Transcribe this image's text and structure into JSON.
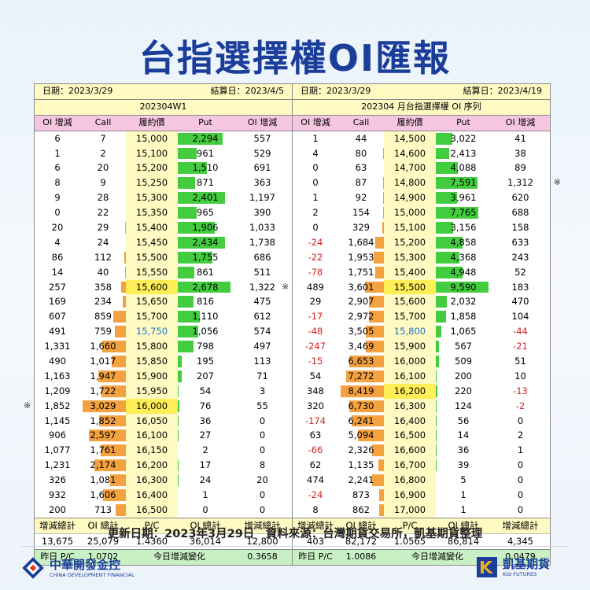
{
  "title": "台指選擇權OI匯報",
  "headers": [
    "OI 增減",
    "Call",
    "履約價",
    "Put",
    "OI 增減"
  ],
  "left": {
    "date_label": "日期：2023/3/29",
    "settle_label": "結算日：2023/4/5",
    "series": "202304W1",
    "atm_strike": "15,750",
    "rows": [
      {
        "coi": "6",
        "call": "7",
        "strike": "15,000",
        "put": "2,294",
        "poi": "557",
        "cv": 7,
        "pv": 2294,
        "mark": ""
      },
      {
        "coi": "1",
        "call": "2",
        "strike": "15,100",
        "put": "961",
        "poi": "529",
        "cv": 2,
        "pv": 961,
        "mark": ""
      },
      {
        "coi": "6",
        "call": "20",
        "strike": "15,200",
        "put": "1,510",
        "poi": "691",
        "cv": 20,
        "pv": 1510,
        "mark": ""
      },
      {
        "coi": "8",
        "call": "9",
        "strike": "15,250",
        "put": "871",
        "poi": "363",
        "cv": 9,
        "pv": 871,
        "mark": ""
      },
      {
        "coi": "9",
        "call": "28",
        "strike": "15,300",
        "put": "2,401",
        "poi": "1,197",
        "cv": 28,
        "pv": 2401,
        "mark": ""
      },
      {
        "coi": "0",
        "call": "22",
        "strike": "15,350",
        "put": "965",
        "poi": "390",
        "cv": 22,
        "pv": 965,
        "mark": ""
      },
      {
        "coi": "20",
        "call": "29",
        "strike": "15,400",
        "put": "1,906",
        "poi": "1,033",
        "cv": 29,
        "pv": 1906,
        "mark": ""
      },
      {
        "coi": "4",
        "call": "24",
        "strike": "15,450",
        "put": "2,434",
        "poi": "1,738",
        "cv": 24,
        "pv": 2434,
        "mark": "right"
      },
      {
        "coi": "86",
        "call": "112",
        "strike": "15,500",
        "put": "1,755",
        "poi": "686",
        "cv": 112,
        "pv": 1755,
        "mark": ""
      },
      {
        "coi": "14",
        "call": "40",
        "strike": "15,550",
        "put": "861",
        "poi": "511",
        "cv": 40,
        "pv": 861,
        "mark": ""
      },
      {
        "coi": "257",
        "call": "358",
        "strike": "15,600",
        "put": "2,678",
        "poi": "1,322",
        "cv": 358,
        "pv": 2678,
        "mark": ""
      },
      {
        "coi": "169",
        "call": "234",
        "strike": "15,650",
        "put": "816",
        "poi": "475",
        "cv": 234,
        "pv": 816,
        "mark": ""
      },
      {
        "coi": "607",
        "call": "859",
        "strike": "15,700",
        "put": "1,110",
        "poi": "612",
        "cv": 859,
        "pv": 1110,
        "mark": ""
      },
      {
        "coi": "491",
        "call": "759",
        "strike": "15,750",
        "put": "1,056",
        "poi": "574",
        "cv": 759,
        "pv": 1056,
        "mark": ""
      },
      {
        "coi": "1,331",
        "call": "1,660",
        "strike": "15,800",
        "put": "798",
        "poi": "497",
        "cv": 1660,
        "pv": 798,
        "mark": ""
      },
      {
        "coi": "490",
        "call": "1,017",
        "strike": "15,850",
        "put": "195",
        "poi": "113",
        "cv": 1017,
        "pv": 195,
        "mark": ""
      },
      {
        "coi": "1,163",
        "call": "1,947",
        "strike": "15,900",
        "put": "207",
        "poi": "71",
        "cv": 1947,
        "pv": 207,
        "mark": ""
      },
      {
        "coi": "1,209",
        "call": "1,722",
        "strike": "15,950",
        "put": "54",
        "poi": "3",
        "cv": 1722,
        "pv": 54,
        "mark": ""
      },
      {
        "coi": "1,852",
        "call": "3,029",
        "strike": "16,000",
        "put": "76",
        "poi": "55",
        "cv": 3029,
        "pv": 76,
        "mark": "left"
      },
      {
        "coi": "1,145",
        "call": "1,852",
        "strike": "16,050",
        "put": "36",
        "poi": "0",
        "cv": 1852,
        "pv": 36,
        "mark": ""
      },
      {
        "coi": "906",
        "call": "2,597",
        "strike": "16,100",
        "put": "27",
        "poi": "0",
        "cv": 2597,
        "pv": 27,
        "mark": ""
      },
      {
        "coi": "1,077",
        "call": "1,761",
        "strike": "16,150",
        "put": "2",
        "poi": "0",
        "cv": 1761,
        "pv": 2,
        "mark": ""
      },
      {
        "coi": "1,231",
        "call": "2,174",
        "strike": "16,200",
        "put": "17",
        "poi": "8",
        "cv": 2174,
        "pv": 17,
        "mark": ""
      },
      {
        "coi": "326",
        "call": "1,081",
        "strike": "16,300",
        "put": "24",
        "poi": "20",
        "cv": 1081,
        "pv": 24,
        "mark": ""
      },
      {
        "coi": "932",
        "call": "1,606",
        "strike": "16,400",
        "put": "1",
        "poi": "0",
        "cv": 1606,
        "pv": 1,
        "mark": ""
      },
      {
        "coi": "200",
        "call": "713",
        "strike": "16,500",
        "put": "0",
        "poi": "0",
        "cv": 713,
        "pv": 0,
        "mark": ""
      }
    ],
    "highlight_strikes": [
      "15,600",
      "16,000"
    ],
    "total_labels": [
      "增減總計",
      "OI 總計",
      "P/C",
      "OI 總計",
      "增減總計"
    ],
    "totals": [
      "13,675",
      "25,079",
      "1.4360",
      "36,014",
      "12,800"
    ],
    "pc_label": "昨日 P/C",
    "pc_value": "1.0702",
    "change_label": "今日增減變化",
    "change_value": "0.3658"
  },
  "right": {
    "date_label": "日期：2023/3/29",
    "settle_label": "結算日：2023/4/19",
    "series": "202304 月台指選擇權 OI 序列",
    "atm_strike": "15,800",
    "rows": [
      {
        "coi": "1",
        "call": "44",
        "strike": "14,500",
        "put": "3,022",
        "poi": "41",
        "cv": 44,
        "pv": 3022,
        "mark": ""
      },
      {
        "coi": "4",
        "call": "80",
        "strike": "14,600",
        "put": "2,413",
        "poi": "38",
        "cv": 80,
        "pv": 2413,
        "mark": ""
      },
      {
        "coi": "0",
        "call": "63",
        "strike": "14,700",
        "put": "4,088",
        "poi": "89",
        "cv": 63,
        "pv": 4088,
        "mark": ""
      },
      {
        "coi": "0",
        "call": "87",
        "strike": "14,800",
        "put": "7,591",
        "poi": "1,312",
        "cv": 87,
        "pv": 7591,
        "mark": "right"
      },
      {
        "coi": "1",
        "call": "92",
        "strike": "14,900",
        "put": "3,961",
        "poi": "620",
        "cv": 92,
        "pv": 3961,
        "mark": ""
      },
      {
        "coi": "2",
        "call": "154",
        "strike": "15,000",
        "put": "7,765",
        "poi": "688",
        "cv": 154,
        "pv": 7765,
        "mark": ""
      },
      {
        "coi": "0",
        "call": "329",
        "strike": "15,100",
        "put": "3,156",
        "poi": "158",
        "cv": 329,
        "pv": 3156,
        "mark": ""
      },
      {
        "coi": "-24",
        "call": "1,684",
        "strike": "15,200",
        "put": "4,858",
        "poi": "633",
        "cv": 1684,
        "pv": 4858,
        "mark": ""
      },
      {
        "coi": "-22",
        "call": "1,953",
        "strike": "15,300",
        "put": "4,368",
        "poi": "243",
        "cv": 1953,
        "pv": 4368,
        "mark": ""
      },
      {
        "coi": "-78",
        "call": "1,751",
        "strike": "15,400",
        "put": "4,948",
        "poi": "52",
        "cv": 1751,
        "pv": 4948,
        "mark": ""
      },
      {
        "coi": "489",
        "call": "3,601",
        "strike": "15,500",
        "put": "9,590",
        "poi": "183",
        "cv": 3601,
        "pv": 9590,
        "mark": "left"
      },
      {
        "coi": "29",
        "call": "2,907",
        "strike": "15,600",
        "put": "2,032",
        "poi": "470",
        "cv": 2907,
        "pv": 2032,
        "mark": ""
      },
      {
        "coi": "-17",
        "call": "2,972",
        "strike": "15,700",
        "put": "1,858",
        "poi": "104",
        "cv": 2972,
        "pv": 1858,
        "mark": ""
      },
      {
        "coi": "-48",
        "call": "3,505",
        "strike": "15,800",
        "put": "1,065",
        "poi": "-44",
        "cv": 3505,
        "pv": 1065,
        "mark": ""
      },
      {
        "coi": "-247",
        "call": "3,469",
        "strike": "15,900",
        "put": "567",
        "poi": "-21",
        "cv": 3469,
        "pv": 567,
        "mark": ""
      },
      {
        "coi": "-15",
        "call": "6,653",
        "strike": "16,000",
        "put": "509",
        "poi": "51",
        "cv": 6653,
        "pv": 509,
        "mark": ""
      },
      {
        "coi": "54",
        "call": "7,272",
        "strike": "16,100",
        "put": "200",
        "poi": "10",
        "cv": 7272,
        "pv": 200,
        "mark": ""
      },
      {
        "coi": "348",
        "call": "8,419",
        "strike": "16,200",
        "put": "220",
        "poi": "-13",
        "cv": 8419,
        "pv": 220,
        "mark": ""
      },
      {
        "coi": "320",
        "call": "6,730",
        "strike": "16,300",
        "put": "124",
        "poi": "-2",
        "cv": 6730,
        "pv": 124,
        "mark": ""
      },
      {
        "coi": "-174",
        "call": "6,241",
        "strike": "16,400",
        "put": "56",
        "poi": "0",
        "cv": 6241,
        "pv": 56,
        "mark": ""
      },
      {
        "coi": "63",
        "call": "5,094",
        "strike": "16,500",
        "put": "14",
        "poi": "2",
        "cv": 5094,
        "pv": 14,
        "mark": ""
      },
      {
        "coi": "-66",
        "call": "2,326",
        "strike": "16,600",
        "put": "36",
        "poi": "1",
        "cv": 2326,
        "pv": 36,
        "mark": ""
      },
      {
        "coi": "62",
        "call": "1,135",
        "strike": "16,700",
        "put": "39",
        "poi": "0",
        "cv": 1135,
        "pv": 39,
        "mark": ""
      },
      {
        "coi": "474",
        "call": "2,241",
        "strike": "16,800",
        "put": "5",
        "poi": "0",
        "cv": 2241,
        "pv": 5,
        "mark": ""
      },
      {
        "coi": "-24",
        "call": "873",
        "strike": "16,900",
        "put": "1",
        "poi": "0",
        "cv": 873,
        "pv": 1,
        "mark": ""
      },
      {
        "coi": "8",
        "call": "862",
        "strike": "17,000",
        "put": "1",
        "poi": "0",
        "cv": 862,
        "pv": 1,
        "mark": ""
      }
    ],
    "highlight_strikes": [
      "15,500",
      "16,200"
    ],
    "total_labels": [
      "增減總計",
      "OI 總計",
      "P/C",
      "OI 總計",
      "增減總計"
    ],
    "totals": [
      "403",
      "82,172",
      "1.0565",
      "86,814",
      "4,345"
    ],
    "pc_label": "昨日 P/C",
    "pc_value": "1.0086",
    "change_label": "今日增減變化",
    "change_value": "0.0479"
  },
  "mark_symbol": "※",
  "footer": "更新日期：2023年3月29日　資料來源：台灣期貨交易所，凱基期貨整理",
  "logo_left": {
    "name": "中華開發金控",
    "sub": "CHINA DEVELOPMENT FINANCIAL"
  },
  "logo_right": {
    "name": "凱基期貨",
    "sub": "KGI FUTURES"
  },
  "colors": {
    "title": "#1a3e9a",
    "call_bar": "#f4a13f",
    "put_bar": "#43cd3e",
    "header_bg": "#f6c6e0",
    "info_bg": "#fff9c2",
    "pc_bg": "#c9f0c4",
    "negative": "#d21f1f",
    "atm": "#1a73c7"
  }
}
